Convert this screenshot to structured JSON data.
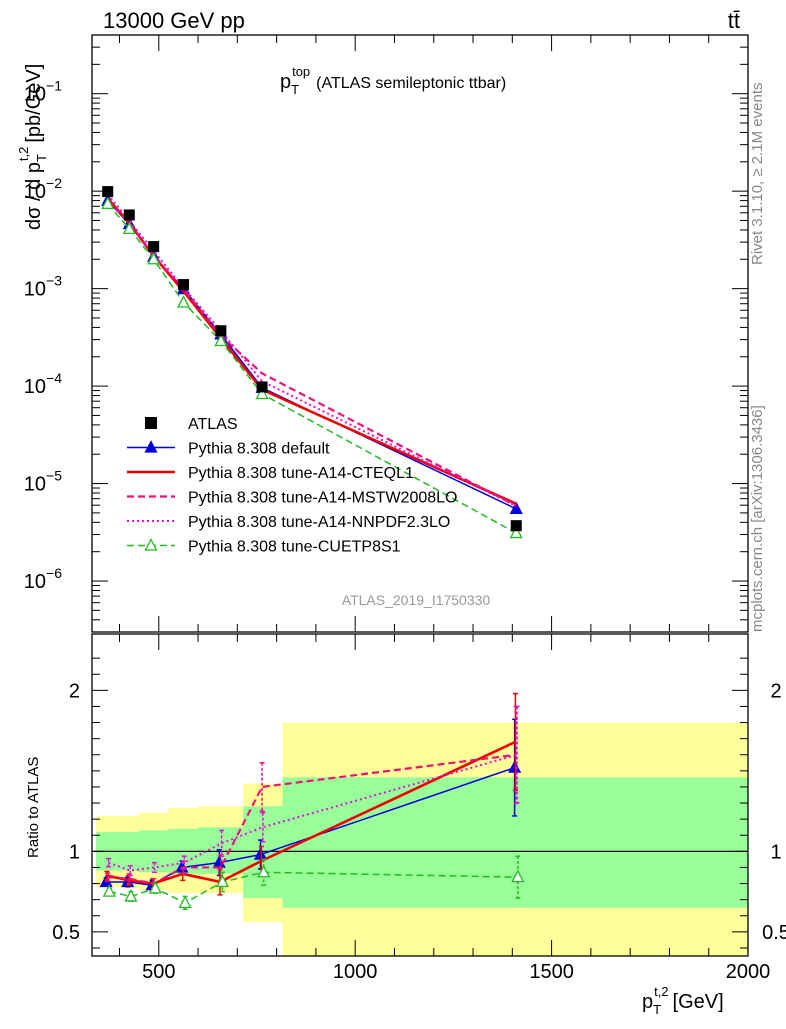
{
  "header": {
    "left": "13000 GeV pp",
    "right": "tt̄"
  },
  "side_labels": {
    "top": "Rivet 3.1.10, ≥ 2.1M events",
    "bottom": "mcplots.cern.ch [arXiv:1306.3436]"
  },
  "chart_data": [
    {
      "type": "line",
      "title": "pT top (ATLAS semileptonic ttbar)",
      "title_parts": {
        "main": "p",
        "sub": "T",
        "sup": "top",
        "rest": "(ATLAS semileptonic ttbar)"
      },
      "watermark": "ATLAS_2019_I1750330",
      "ylabel": "dσ / d pT t,2 [pb/GeV]",
      "yscale": "log",
      "ylim": [
        3e-07,
        0.4
      ],
      "xlim": [
        330,
        2000
      ],
      "y_ticks": [
        {
          "value": 0.1,
          "label": "10",
          "exp": "−1"
        },
        {
          "value": 0.01,
          "label": "10",
          "exp": "−2"
        },
        {
          "value": 0.001,
          "label": "10",
          "exp": "−3"
        },
        {
          "value": 0.0001,
          "label": "10",
          "exp": "−4"
        },
        {
          "value": 1e-05,
          "label": "10",
          "exp": "−5"
        },
        {
          "value": 1e-06,
          "label": "10",
          "exp": "−6"
        }
      ],
      "legend_position": "center-left",
      "x": [
        370,
        425,
        487,
        563,
        658,
        763,
        1410
      ],
      "series": [
        {
          "name": "ATLAS",
          "color": "#000000",
          "style": "marker-square",
          "values": [
            0.0099,
            0.0057,
            0.0027,
            0.0011,
            0.00037,
            9.8e-05,
            3.7e-06
          ]
        },
        {
          "name": "Pythia 8.308 default",
          "color": "#0000dd",
          "style": "solid-triangle",
          "values": [
            0.008,
            0.0046,
            0.00213,
            0.00099,
            0.00034,
            9.6e-05,
            5.5e-06
          ]
        },
        {
          "name": "Pythia 8.308 tune-A14-CTEQL1",
          "color": "#ee0000",
          "style": "solid-thick",
          "values": [
            0.0084,
            0.0047,
            0.00216,
            0.00094,
            0.00031,
            9.2e-05,
            6.2e-06
          ]
        },
        {
          "name": "Pythia 8.308 tune-A14-MSTW2008LO",
          "color": "#ee1177",
          "style": "dashed",
          "values": [
            0.0083,
            0.0047,
            0.00217,
            0.00099,
            0.00033,
            0.000135,
            5.9e-06
          ]
        },
        {
          "name": "Pythia 8.308 tune-A14-NNPDF2.3LO",
          "color": "#dd11dd",
          "style": "dotted",
          "values": [
            0.0093,
            0.005,
            0.00243,
            0.00102,
            0.00037,
            0.000112,
            5.9e-06
          ]
        },
        {
          "name": "Pythia 8.308 tune-CUETP8S1",
          "color": "#22bb22",
          "style": "dashed-open-triangle",
          "values": [
            0.0074,
            0.0041,
            0.002,
            0.00072,
            0.00029,
            8.3e-05,
            3.1e-06
          ]
        }
      ]
    },
    {
      "type": "line",
      "ylabel": "Ratio to ATLAS",
      "xlabel": "pT t,2 [GeV]",
      "xlabel_parts": {
        "main": "p",
        "sub": "T",
        "sup": "t,2",
        "rest": "[GeV]"
      },
      "ylim": [
        0.35,
        2.35
      ],
      "xlim": [
        330,
        2000
      ],
      "x_ticks": [
        500,
        1000,
        1500,
        2000
      ],
      "y_ticks": [
        0.5,
        1,
        2
      ],
      "reference": 1,
      "bins": [
        {
          "xlo": 340,
          "xhi": 400,
          "yellow": [
            0.78,
            1.22
          ],
          "green": [
            0.88,
            1.12
          ]
        },
        {
          "xlo": 400,
          "xhi": 450,
          "yellow": [
            0.77,
            1.22
          ],
          "green": [
            0.88,
            1.12
          ]
        },
        {
          "xlo": 450,
          "xhi": 525,
          "yellow": [
            0.76,
            1.24
          ],
          "green": [
            0.87,
            1.13
          ]
        },
        {
          "xlo": 525,
          "xhi": 600,
          "yellow": [
            0.74,
            1.27
          ],
          "green": [
            0.86,
            1.14
          ]
        },
        {
          "xlo": 600,
          "xhi": 715,
          "yellow": [
            0.74,
            1.28
          ],
          "green": [
            0.86,
            1.15
          ]
        },
        {
          "xlo": 715,
          "xhi": 815,
          "yellow": [
            0.56,
            1.42
          ],
          "green": [
            0.71,
            1.28
          ]
        },
        {
          "xlo": 815,
          "xhi": 2000,
          "yellow": [
            0.33,
            1.8
          ],
          "green": [
            0.65,
            1.46
          ]
        }
      ],
      "x": [
        370,
        425,
        487,
        563,
        658,
        763,
        1410
      ],
      "series": [
        {
          "name": "Pythia 8.308 default",
          "color": "#0000dd",
          "values": [
            0.81,
            0.81,
            0.79,
            0.9,
            0.93,
            0.98,
            1.52
          ],
          "errors": [
            0.025,
            0.03,
            0.03,
            0.04,
            0.08,
            0.09,
            0.3
          ]
        },
        {
          "name": "Pythia 8.308 tune-A14-CTEQL1",
          "color": "#ee0000",
          "values": [
            0.85,
            0.82,
            0.8,
            0.86,
            0.81,
            0.94,
            1.68
          ],
          "errors": [
            0.025,
            0.03,
            0.03,
            0.04,
            0.08,
            0.09,
            0.3
          ]
        },
        {
          "name": "Pythia 8.308 tune-A14-MSTW2008LO",
          "color": "#ee1177",
          "values": [
            0.84,
            0.83,
            0.8,
            0.9,
            0.9,
            1.4,
            1.6
          ],
          "errors": [
            0.025,
            0.03,
            0.03,
            0.04,
            0.08,
            0.15,
            0.3
          ]
        },
        {
          "name": "Pythia 8.308 tune-A14-NNPDF2.3LO",
          "color": "#dd11dd",
          "values": [
            0.93,
            0.88,
            0.9,
            0.93,
            1.05,
            1.15,
            1.6
          ],
          "errors": [
            0.025,
            0.03,
            0.03,
            0.04,
            0.08,
            0.09,
            0.3
          ]
        },
        {
          "name": "Pythia 8.308 tune-CUETP8S1",
          "color": "#22bb22",
          "values": [
            0.75,
            0.72,
            0.77,
            0.68,
            0.81,
            0.87,
            0.84
          ],
          "errors": [
            0.02,
            0.03,
            0.03,
            0.04,
            0.06,
            0.08,
            0.13
          ]
        }
      ]
    }
  ]
}
